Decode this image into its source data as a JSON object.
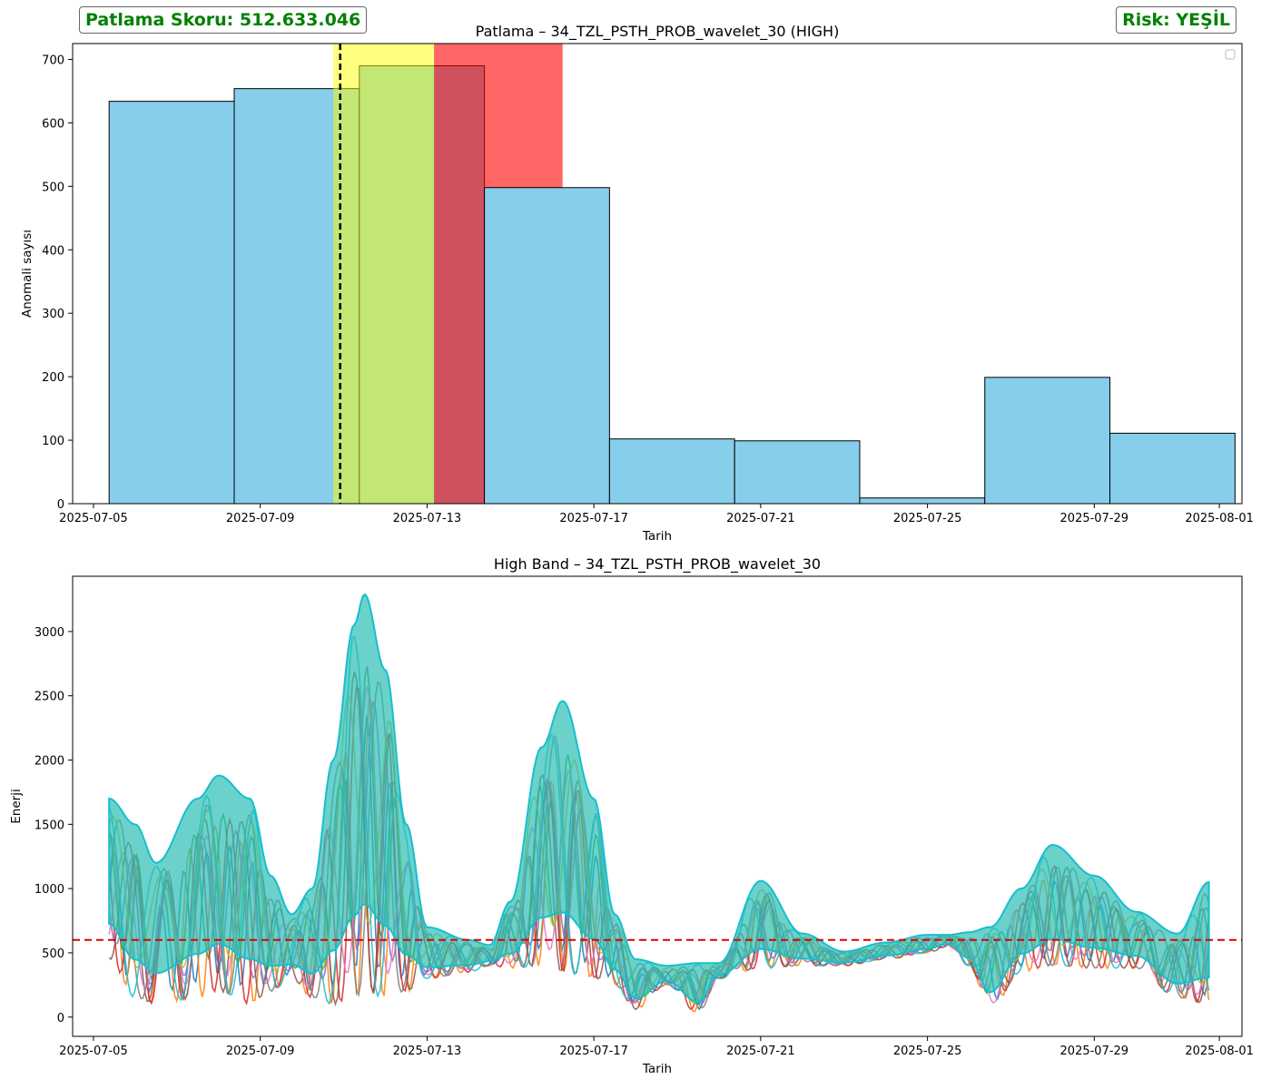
{
  "score_badge": "Patlama Skoru: 512.633.046",
  "risk_badge": "Risk: YEŞİL",
  "colors": {
    "bar_fill": "#87ceeb",
    "accent_green": "#008000",
    "yellow_band": "#ffff00",
    "red_band": "#ff0000",
    "threshold": "#dd0000"
  },
  "chart_data": [
    {
      "type": "bar",
      "title": "Patlama – 34_TZL_PSTH_PROB_wavelet_30 (HIGH)",
      "xlabel": "Tarih",
      "ylabel": "Anomali sayısı",
      "x_ticks": [
        "2025-07-05",
        "2025-07-09",
        "2025-07-13",
        "2025-07-17",
        "2025-07-21",
        "2025-07-25",
        "2025-07-29",
        "2025-08-01"
      ],
      "xlim": [
        "2025-07-04T12:00",
        "2025-08-01T13:00"
      ],
      "ylim": [
        0,
        725
      ],
      "y_ticks": [
        0,
        100,
        200,
        300,
        400,
        500,
        600,
        700
      ],
      "bins": [
        {
          "start": "2025-07-05T09:00",
          "end": "2025-07-08T09:00",
          "count": 634
        },
        {
          "start": "2025-07-08T09:00",
          "end": "2025-07-11T09:00",
          "count": 654
        },
        {
          "start": "2025-07-11T09:00",
          "end": "2025-07-14T09:00",
          "count": 690
        },
        {
          "start": "2025-07-14T09:00",
          "end": "2025-07-17T09:00",
          "count": 498
        },
        {
          "start": "2025-07-17T09:00",
          "end": "2025-07-20T09:00",
          "count": 102
        },
        {
          "start": "2025-07-20T09:00",
          "end": "2025-07-23T09:00",
          "count": 99
        },
        {
          "start": "2025-07-23T09:00",
          "end": "2025-07-26T09:00",
          "count": 9
        },
        {
          "start": "2025-07-26T09:00",
          "end": "2025-07-29T09:00",
          "count": 199
        },
        {
          "start": "2025-07-29T09:00",
          "end": "2025-08-01T09:00",
          "count": 111
        }
      ],
      "yellow_band": [
        "2025-07-10T18:00",
        "2025-07-13T04:00"
      ],
      "red_band": [
        "2025-07-13T04:00",
        "2025-07-16T06:00"
      ],
      "vline": "2025-07-10T22:00",
      "legend": "upper right, empty",
      "grid": false
    },
    {
      "type": "line",
      "title": "High Band – 34_TZL_PSTH_PROB_wavelet_30",
      "xlabel": "Tarih",
      "ylabel": "Enerji",
      "x_ticks": [
        "2025-07-05",
        "2025-07-09",
        "2025-07-13",
        "2025-07-17",
        "2025-07-21",
        "2025-07-25",
        "2025-07-29",
        "2025-08-01"
      ],
      "xlim": [
        "2025-07-04T12:00",
        "2025-08-01T13:00"
      ],
      "ylim": [
        -150,
        3430
      ],
      "y_ticks": [
        0,
        500,
        1000,
        1500,
        2000,
        2500,
        3000
      ],
      "threshold": 600,
      "envelope": [
        {
          "date": "2025-07-05T09:00",
          "low": 450,
          "high": 1700
        },
        {
          "date": "2025-07-06T00:00",
          "low": 150,
          "high": 1500
        },
        {
          "date": "2025-07-06T12:00",
          "low": 100,
          "high": 1200
        },
        {
          "date": "2025-07-07T12:00",
          "low": 150,
          "high": 1700
        },
        {
          "date": "2025-07-08T00:00",
          "low": 200,
          "high": 1880
        },
        {
          "date": "2025-07-08T18:00",
          "low": 100,
          "high": 1700
        },
        {
          "date": "2025-07-09T06:00",
          "low": 200,
          "high": 1100
        },
        {
          "date": "2025-07-09T18:00",
          "low": 300,
          "high": 800
        },
        {
          "date": "2025-07-10T06:00",
          "low": 150,
          "high": 1000
        },
        {
          "date": "2025-07-10T18:00",
          "low": 100,
          "high": 2000
        },
        {
          "date": "2025-07-11T06:00",
          "low": 150,
          "high": 3050
        },
        {
          "date": "2025-07-11T12:00",
          "low": 200,
          "high": 3290
        },
        {
          "date": "2025-07-12T00:00",
          "low": 150,
          "high": 2700
        },
        {
          "date": "2025-07-12T12:00",
          "low": 200,
          "high": 1500
        },
        {
          "date": "2025-07-13T00:00",
          "low": 300,
          "high": 700
        },
        {
          "date": "2025-07-14T00:00",
          "low": 350,
          "high": 600
        },
        {
          "date": "2025-07-14T12:00",
          "low": 400,
          "high": 560
        },
        {
          "date": "2025-07-15T00:00",
          "low": 380,
          "high": 900
        },
        {
          "date": "2025-07-15T18:00",
          "low": 400,
          "high": 2100
        },
        {
          "date": "2025-07-16T06:00",
          "low": 350,
          "high": 2460
        },
        {
          "date": "2025-07-17T00:00",
          "low": 300,
          "high": 1700
        },
        {
          "date": "2025-07-17T12:00",
          "low": 250,
          "high": 800
        },
        {
          "date": "2025-07-18T00:00",
          "low": 60,
          "high": 450
        },
        {
          "date": "2025-07-18T18:00",
          "low": 250,
          "high": 400
        },
        {
          "date": "2025-07-19T12:00",
          "low": 30,
          "high": 420
        },
        {
          "date": "2025-07-20T00:00",
          "low": 300,
          "high": 420
        },
        {
          "date": "2025-07-21T00:00",
          "low": 380,
          "high": 1060
        },
        {
          "date": "2025-07-22T00:00",
          "low": 400,
          "high": 650
        },
        {
          "date": "2025-07-23T00:00",
          "low": 400,
          "high": 510
        },
        {
          "date": "2025-07-24T00:00",
          "low": 450,
          "high": 580
        },
        {
          "date": "2025-07-25T00:00",
          "low": 500,
          "high": 640
        },
        {
          "date": "2025-07-25T12:00",
          "low": 550,
          "high": 640
        },
        {
          "date": "2025-07-26T00:00",
          "low": 400,
          "high": 660
        },
        {
          "date": "2025-07-26T12:00",
          "low": 50,
          "high": 700
        },
        {
          "date": "2025-07-27T06:00",
          "low": 350,
          "high": 1000
        },
        {
          "date": "2025-07-28T00:00",
          "low": 400,
          "high": 1340
        },
        {
          "date": "2025-07-29T00:00",
          "low": 380,
          "high": 1100
        },
        {
          "date": "2025-07-30T00:00",
          "low": 380,
          "high": 820
        },
        {
          "date": "2025-07-31T00:00",
          "low": 150,
          "high": 650
        },
        {
          "date": "2025-07-31T18:00",
          "low": 100,
          "high": 1050
        }
      ],
      "series_colors": [
        "#1f77b4",
        "#ff7f0e",
        "#2ca02c",
        "#d62728",
        "#9467bd",
        "#8c564b",
        "#e377c2",
        "#7f7f7f",
        "#bcbd22",
        "#17becf"
      ],
      "grid": false
    }
  ]
}
